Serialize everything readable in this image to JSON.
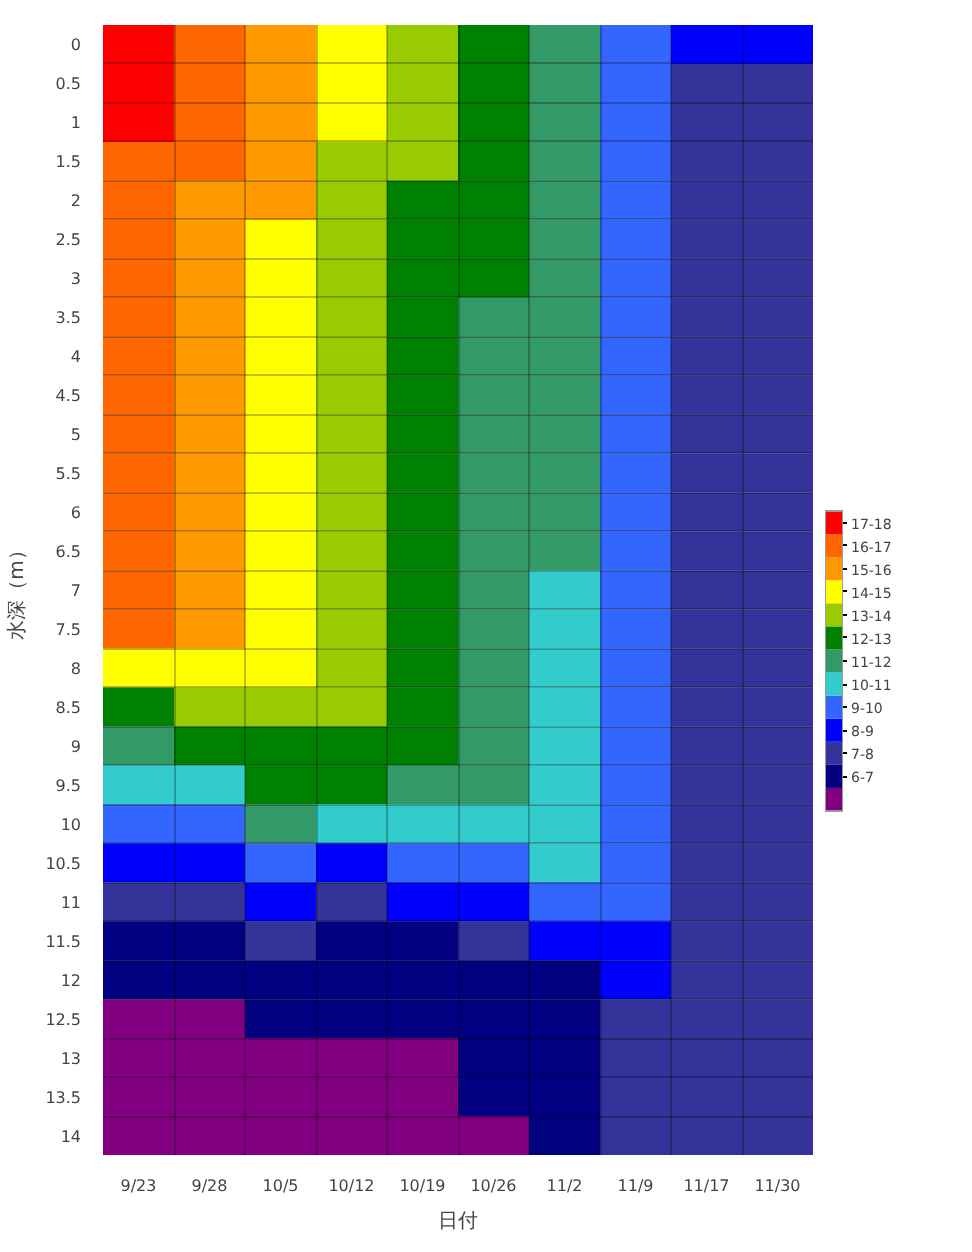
{
  "chart_data": {
    "type": "heatmap",
    "xlabel": "日付",
    "ylabel": "水深（m）",
    "categories": [
      "9/23",
      "9/28",
      "10/5",
      "10/12",
      "10/19",
      "10/26",
      "11/2",
      "11/9",
      "11/17",
      "11/30"
    ],
    "y_categories": [
      "0",
      "0.5",
      "1",
      "1.5",
      "2",
      "2.5",
      "3",
      "3.5",
      "4",
      "4.5",
      "5",
      "5.5",
      "6",
      "6.5",
      "7",
      "7.5",
      "8",
      "8.5",
      "9",
      "9.5",
      "10",
      "10.5",
      "11",
      "11.5",
      "12",
      "12.5",
      "13",
      "13.5",
      "14"
    ],
    "cells": [
      [
        17.5,
        16.5,
        15.5,
        14.5,
        13.5,
        12.5,
        11.5,
        9.5,
        8.5,
        8.5
      ],
      [
        17.5,
        16.5,
        15.5,
        14.5,
        13.5,
        12.5,
        11.5,
        9.5,
        7.5,
        7.5
      ],
      [
        17.5,
        16.5,
        15.5,
        14.5,
        13.5,
        12.5,
        11.5,
        9.5,
        7.5,
        7.5
      ],
      [
        16.5,
        16.5,
        15.5,
        13.5,
        13.5,
        12.5,
        11.5,
        9.5,
        7.5,
        7.5
      ],
      [
        16.5,
        15.5,
        15.5,
        13.5,
        12.5,
        12.5,
        11.5,
        9.5,
        7.5,
        7.5
      ],
      [
        16.5,
        15.5,
        14.5,
        13.5,
        12.5,
        12.5,
        11.5,
        9.5,
        7.5,
        7.5
      ],
      [
        16.5,
        15.5,
        14.5,
        13.5,
        12.5,
        12.5,
        11.5,
        9.5,
        7.5,
        7.5
      ],
      [
        16.5,
        15.5,
        14.5,
        13.5,
        12.5,
        11.5,
        11.5,
        9.5,
        7.5,
        7.5
      ],
      [
        16.5,
        15.5,
        14.5,
        13.5,
        12.5,
        11.5,
        11.5,
        9.5,
        7.5,
        7.5
      ],
      [
        16.5,
        15.5,
        14.5,
        13.5,
        12.5,
        11.5,
        11.5,
        9.5,
        7.5,
        7.5
      ],
      [
        16.5,
        15.5,
        14.5,
        13.5,
        12.5,
        11.5,
        11.5,
        9.5,
        7.5,
        7.5
      ],
      [
        16.5,
        15.5,
        14.5,
        13.5,
        12.5,
        11.5,
        11.5,
        9.5,
        7.5,
        7.5
      ],
      [
        16.5,
        15.5,
        14.5,
        13.5,
        12.5,
        11.5,
        11.5,
        9.5,
        7.5,
        7.5
      ],
      [
        16.5,
        15.5,
        14.5,
        13.5,
        12.5,
        11.5,
        11.5,
        9.5,
        7.5,
        7.5
      ],
      [
        16.5,
        15.5,
        14.5,
        13.5,
        12.5,
        11.5,
        10.5,
        9.5,
        7.5,
        7.5
      ],
      [
        16.5,
        15.5,
        14.5,
        13.5,
        12.5,
        11.5,
        10.5,
        9.5,
        7.5,
        7.5
      ],
      [
        14.5,
        14.5,
        14.5,
        13.5,
        12.5,
        11.5,
        10.5,
        9.5,
        7.5,
        7.5
      ],
      [
        12.5,
        13.5,
        13.5,
        13.5,
        12.5,
        11.5,
        10.5,
        9.5,
        7.5,
        7.5
      ],
      [
        11.5,
        12.5,
        12.5,
        12.5,
        12.5,
        11.5,
        10.5,
        9.5,
        7.5,
        7.5
      ],
      [
        10.5,
        10.5,
        12.5,
        12.5,
        11.5,
        11.5,
        10.5,
        9.5,
        7.5,
        7.5
      ],
      [
        9.5,
        9.5,
        11.5,
        10.5,
        10.5,
        10.5,
        10.5,
        9.5,
        7.5,
        7.5
      ],
      [
        8.5,
        8.5,
        9.5,
        8.5,
        9.5,
        9.5,
        10.5,
        9.5,
        7.5,
        7.5
      ],
      [
        7.5,
        7.5,
        8.5,
        7.5,
        8.5,
        8.5,
        9.5,
        9.5,
        7.5,
        7.5
      ],
      [
        6.5,
        6.5,
        7.5,
        6.5,
        6.5,
        7.5,
        8.5,
        8.5,
        7.5,
        7.5
      ],
      [
        6.5,
        6.5,
        6.5,
        6.5,
        6.5,
        6.5,
        6.5,
        8.5,
        7.5,
        7.5
      ],
      [
        5.5,
        5.5,
        6.5,
        6.5,
        6.5,
        6.5,
        6.5,
        7.5,
        7.5,
        7.5
      ],
      [
        5.5,
        5.5,
        5.5,
        5.5,
        5.5,
        6.5,
        6.5,
        7.5,
        7.5,
        7.5
      ],
      [
        5.5,
        5.5,
        5.5,
        5.5,
        5.5,
        6.5,
        6.5,
        7.5,
        7.5,
        7.5
      ],
      [
        5.5,
        5.5,
        5.5,
        5.5,
        5.5,
        5.5,
        6.5,
        7.5,
        7.5,
        7.5
      ]
    ],
    "clim": [
      5,
      18
    ],
    "colors": [
      "#800080",
      "#000080",
      "#333399",
      "#0000ff",
      "#3366ff",
      "#33cccc",
      "#339966",
      "#008000",
      "#99cc00",
      "#ffff00",
      "#ff9900",
      "#ff6600",
      "#ff0000"
    ],
    "cticks": [
      {
        "value": 17.5,
        "label": "17-18"
      },
      {
        "value": 16.5,
        "label": "16-17"
      },
      {
        "value": 15.5,
        "label": "15-16"
      },
      {
        "value": 14.5,
        "label": "14-15"
      },
      {
        "value": 13.5,
        "label": "13-14"
      },
      {
        "value": 12.5,
        "label": "12-13"
      },
      {
        "value": 11.5,
        "label": "11-12"
      },
      {
        "value": 10.5,
        "label": "10-11"
      },
      {
        "value": 9.5,
        "label": "9-10"
      },
      {
        "value": 8.5,
        "label": "8-9"
      },
      {
        "value": 7.5,
        "label": "7-8"
      },
      {
        "value": 6.5,
        "label": "6-7"
      }
    ],
    "grid": true
  }
}
